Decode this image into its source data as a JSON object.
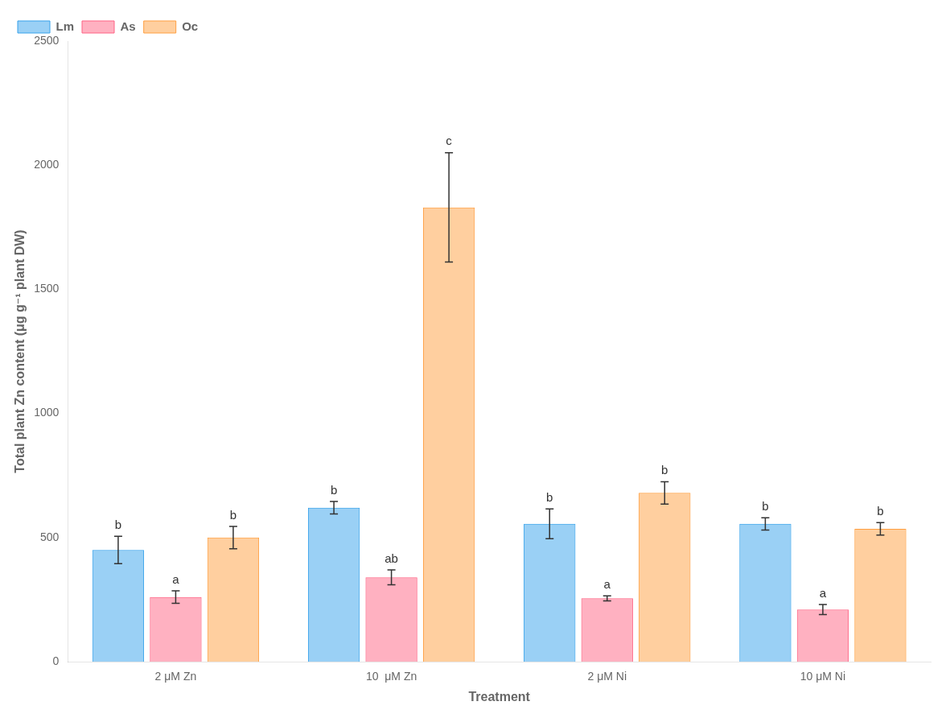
{
  "chart_data": {
    "type": "bar",
    "categories": [
      "2 μM Zn",
      "10  μM Zn",
      "2 μM Ni",
      "10 μM Ni"
    ],
    "series": [
      {
        "name": "Lm",
        "values": [
          450,
          620,
          555,
          555
        ],
        "errors": [
          55,
          25,
          60,
          25
        ],
        "significance_labels": [
          "b",
          "b",
          "b",
          "b"
        ]
      },
      {
        "name": "As",
        "values": [
          260,
          340,
          255,
          210
        ],
        "errors": [
          25,
          30,
          10,
          20
        ],
        "significance_labels": [
          "a",
          "ab",
          "a",
          "a"
        ]
      },
      {
        "name": "Oc",
        "values": [
          500,
          1830,
          680,
          535
        ],
        "errors": [
          45,
          220,
          45,
          25
        ],
        "significance_labels": [
          "b",
          "c",
          "b",
          "b"
        ]
      }
    ],
    "xlabel": "Treatment",
    "ylabel": "Total plant Zn content (μg g⁻¹ plant DW)",
    "ylim": [
      0,
      2500
    ],
    "yticks": [
      0,
      500,
      1000,
      1500,
      2000,
      2500
    ],
    "grid": false,
    "legend": "upper left"
  }
}
